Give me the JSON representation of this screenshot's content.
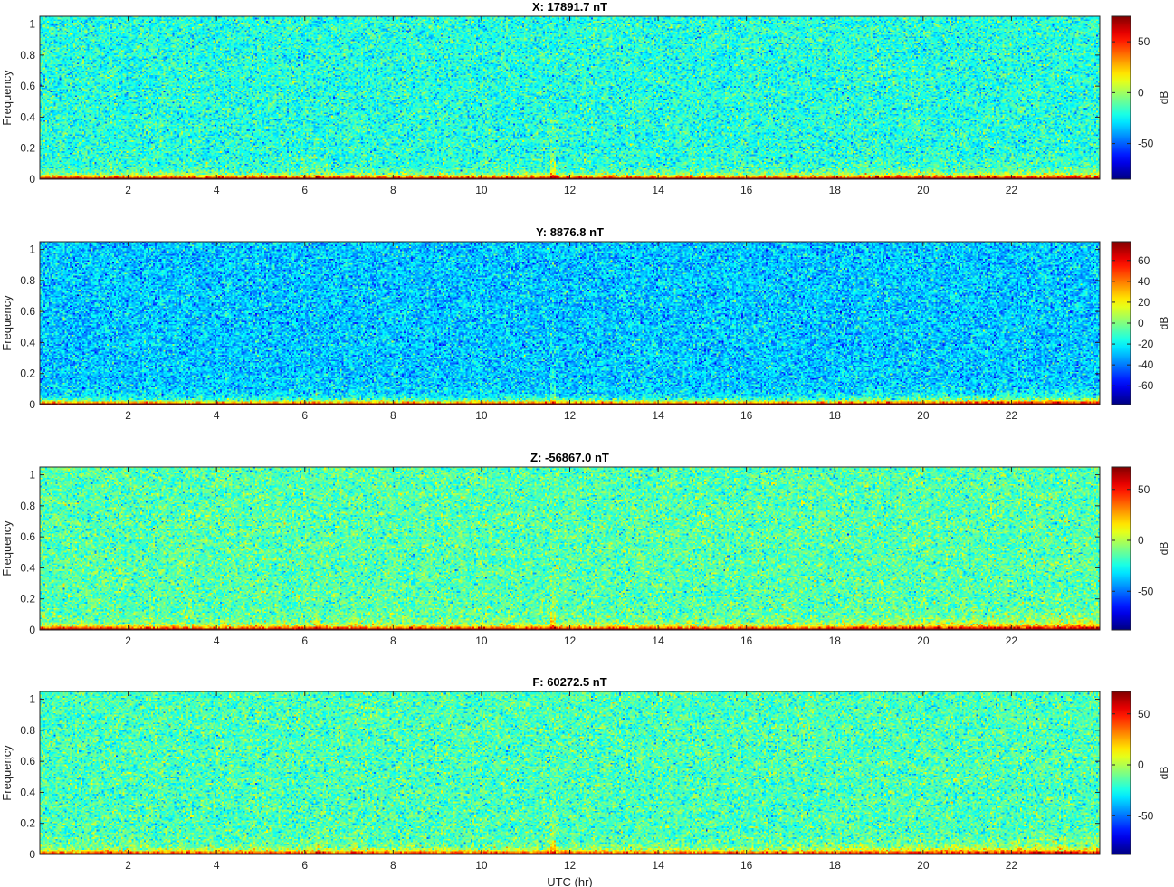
{
  "chart_data": [
    {
      "type": "heatmap",
      "title": "X: 17891.7 nT",
      "xlabel": "",
      "ylabel": "Frequency",
      "xlim": [
        0,
        24
      ],
      "ylim": [
        0,
        1.05
      ],
      "xticks": [
        2,
        4,
        6,
        8,
        10,
        12,
        14,
        16,
        18,
        20,
        22
      ],
      "xtick_labels": [
        "2",
        "4",
        "6",
        "8",
        "10",
        "12",
        "14",
        "16",
        "18",
        "20",
        "22"
      ],
      "yticks": [
        0,
        0.2,
        0.4,
        0.6,
        0.8,
        1
      ],
      "ytick_labels": [
        "0",
        "0.2",
        "0.4",
        "0.6",
        "0.8",
        "1"
      ],
      "colorbar": {
        "label": "dB",
        "clim": [
          -85,
          75
        ],
        "ticks": [
          -50,
          0,
          50
        ],
        "tick_labels": [
          "-50",
          "0",
          "50"
        ],
        "colormap": "jet"
      },
      "background_db": -20,
      "low_freq_db": 70,
      "late_enhancement": 0.6,
      "grid": false
    },
    {
      "type": "heatmap",
      "title": "Y: 8876.8 nT",
      "xlabel": "",
      "ylabel": "Frequency",
      "xlim": [
        0,
        24
      ],
      "ylim": [
        0,
        1.05
      ],
      "xticks": [
        2,
        4,
        6,
        8,
        10,
        12,
        14,
        16,
        18,
        20,
        22
      ],
      "xtick_labels": [
        "2",
        "4",
        "6",
        "8",
        "10",
        "12",
        "14",
        "16",
        "18",
        "20",
        "22"
      ],
      "yticks": [
        0,
        0.2,
        0.4,
        0.6,
        0.8,
        1
      ],
      "ytick_labels": [
        "0",
        "0.2",
        "0.4",
        "0.6",
        "0.8",
        "1"
      ],
      "colorbar": {
        "label": "dB",
        "clim": [
          -78,
          78
        ],
        "ticks": [
          -60,
          -40,
          -20,
          0,
          20,
          40,
          60
        ],
        "tick_labels": [
          "-60",
          "-40",
          "-20",
          "0",
          "20",
          "40",
          "60"
        ],
        "colormap": "jet"
      },
      "background_db": -28,
      "low_freq_db": 70,
      "late_enhancement": 1.0,
      "grid": false
    },
    {
      "type": "heatmap",
      "title": "Z: -56867.0 nT",
      "xlabel": "",
      "ylabel": "Frequency",
      "xlim": [
        0,
        24
      ],
      "ylim": [
        0,
        1.05
      ],
      "xticks": [
        2,
        4,
        6,
        8,
        10,
        12,
        14,
        16,
        18,
        20,
        22
      ],
      "xtick_labels": [
        "2",
        "4",
        "6",
        "8",
        "10",
        "12",
        "14",
        "16",
        "18",
        "20",
        "22"
      ],
      "yticks": [
        0,
        0.2,
        0.4,
        0.6,
        0.8,
        1
      ],
      "ytick_labels": [
        "0",
        "0.2",
        "0.4",
        "0.6",
        "0.8",
        "1"
      ],
      "colorbar": {
        "label": "dB",
        "clim": [
          -88,
          72
        ],
        "ticks": [
          -50,
          0,
          50
        ],
        "tick_labels": [
          "-50",
          "0",
          "50"
        ],
        "colormap": "jet"
      },
      "background_db": -15,
      "low_freq_db": 65,
      "late_enhancement": 1.0,
      "grid": false
    },
    {
      "type": "heatmap",
      "title": "F: 60272.5 nT",
      "xlabel": "UTC (hr)",
      "ylabel": "Frequency",
      "xlim": [
        0,
        24
      ],
      "ylim": [
        0,
        1.05
      ],
      "xticks": [
        2,
        4,
        6,
        8,
        10,
        12,
        14,
        16,
        18,
        20,
        22
      ],
      "xtick_labels": [
        "2",
        "4",
        "6",
        "8",
        "10",
        "12",
        "14",
        "16",
        "18",
        "20",
        "22"
      ],
      "yticks": [
        0,
        0.2,
        0.4,
        0.6,
        0.8,
        1
      ],
      "ytick_labels": [
        "0",
        "0.2",
        "0.4",
        "0.6",
        "0.8",
        "1"
      ],
      "colorbar": {
        "label": "dB",
        "clim": [
          -88,
          72
        ],
        "ticks": [
          -50,
          0,
          50
        ],
        "tick_labels": [
          "-50",
          "0",
          "50"
        ],
        "colormap": "jet"
      },
      "background_db": -17,
      "low_freq_db": 65,
      "late_enhancement": 0.8,
      "grid": false
    }
  ]
}
